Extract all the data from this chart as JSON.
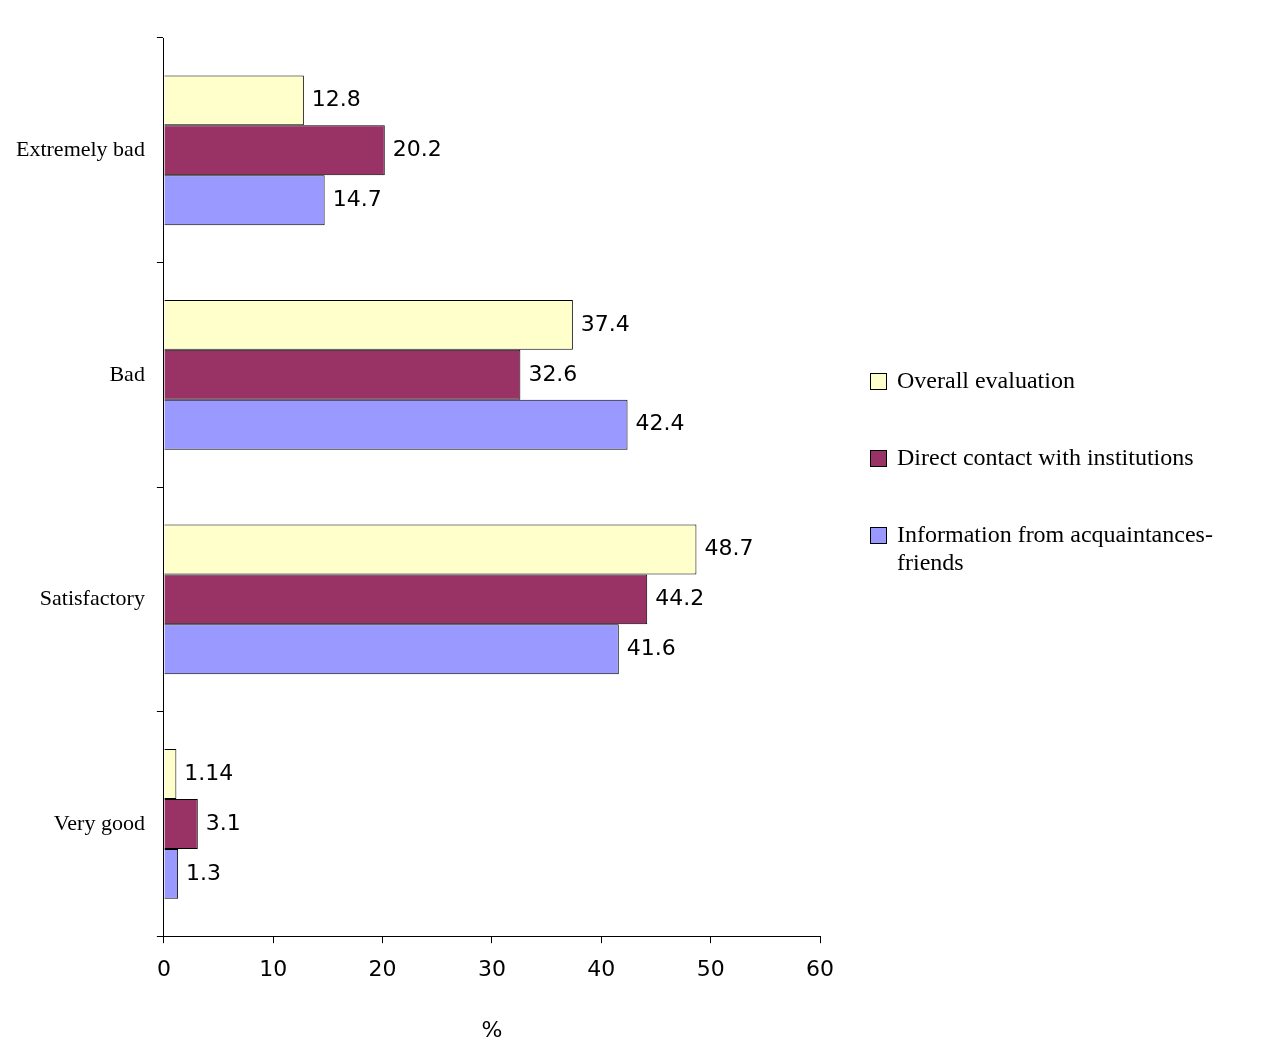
{
  "chart_data": {
    "type": "bar",
    "orientation": "horizontal",
    "xlabel": "%",
    "categories": [
      "Extremely bad",
      "Bad",
      "Satisfactory",
      "Very good"
    ],
    "series": [
      {
        "name": "Overall evaluation",
        "color": "#ffffcc",
        "values": [
          12.8,
          37.4,
          48.7,
          1.14
        ]
      },
      {
        "name": "Direct contact with institutions",
        "color": "#993366",
        "values": [
          20.2,
          32.6,
          44.2,
          3.1
        ]
      },
      {
        "name": "Information from acquaintances-friends",
        "color": "#9999ff",
        "values": [
          14.7,
          42.4,
          41.6,
          1.3
        ]
      }
    ],
    "xlim": [
      0,
      60
    ],
    "xticks": [
      0,
      10,
      20,
      30,
      40,
      50,
      60
    ],
    "grid": false,
    "legend": "right",
    "data_labels": true
  }
}
